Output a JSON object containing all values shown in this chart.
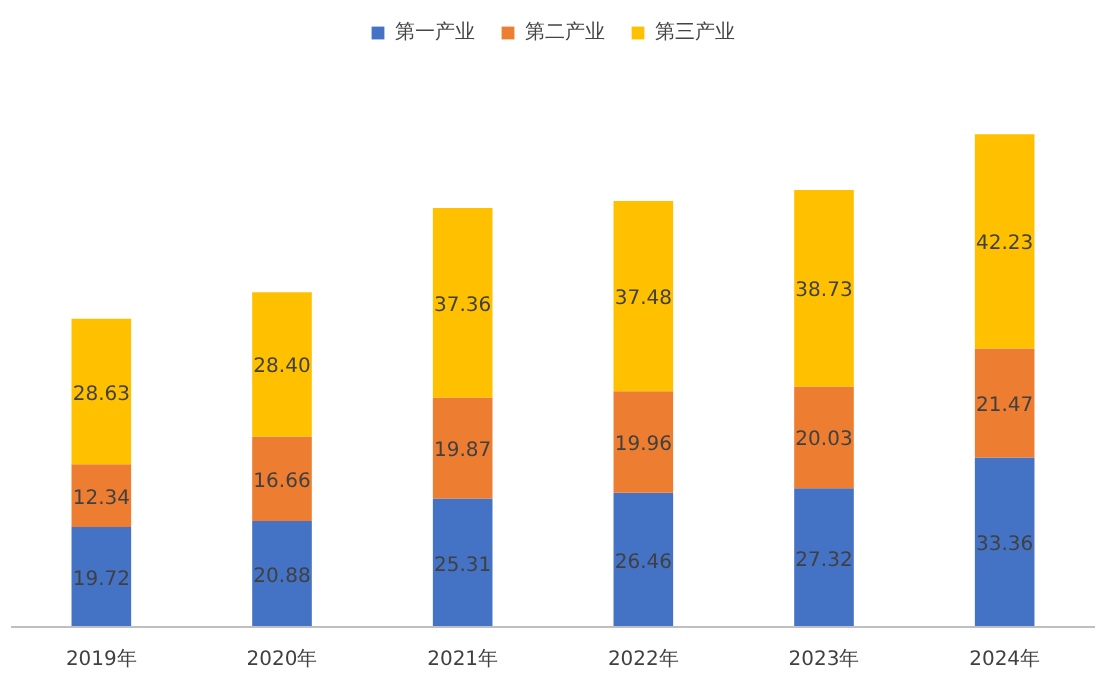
{
  "chart_data": {
    "type": "bar",
    "stacked": true,
    "categories": [
      "2019年",
      "2020年",
      "2021年",
      "2022年",
      "2023年",
      "2024年"
    ],
    "series": [
      {
        "name": "第一产业",
        "color": "#4472c4",
        "values": [
          19.72,
          20.88,
          25.31,
          26.46,
          27.32,
          33.36
        ],
        "value_labels": [
          "19.72",
          "20.88",
          "25.31",
          "26.46",
          "27.32",
          "33.36"
        ]
      },
      {
        "name": "第二产业",
        "color": "#ed7d31",
        "values": [
          12.34,
          16.66,
          19.87,
          19.96,
          20.03,
          21.47
        ],
        "value_labels": [
          "12.34",
          "16.66",
          "19.87",
          "19.96",
          "20.03",
          "21.47"
        ]
      },
      {
        "name": "第三产业",
        "color": "#ffc000",
        "values": [
          28.63,
          28.4,
          37.36,
          37.48,
          38.73,
          42.23
        ],
        "value_labels": [
          "28.63",
          "28.40",
          "37.36",
          "37.48",
          "38.73",
          "42.23"
        ]
      }
    ],
    "legend": "top"
  }
}
